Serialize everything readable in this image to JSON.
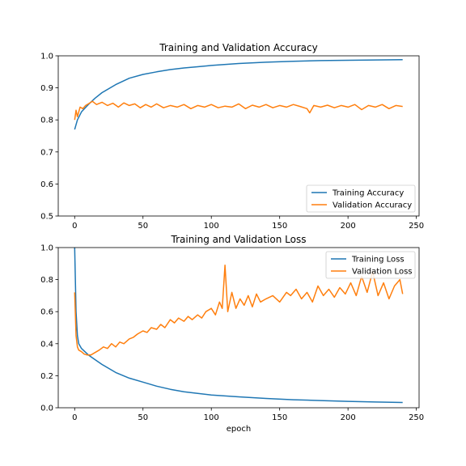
{
  "colors": {
    "training": "#1f77b4",
    "validation": "#ff7f0e"
  },
  "chart_data": [
    {
      "type": "line",
      "title": "Training and Validation Accuracy",
      "xlabel": "",
      "ylabel": "",
      "xlim": [
        -12,
        252
      ],
      "ylim": [
        0.5,
        1.0
      ],
      "xticks": [
        0,
        50,
        100,
        150,
        200,
        250
      ],
      "yticks": [
        0.5,
        0.6,
        0.7,
        0.8,
        0.9,
        1.0
      ],
      "ytick_labels": [
        "0.5",
        "0.6",
        "0.7",
        "0.8",
        "0.9",
        "1.0"
      ],
      "grid": false,
      "legend_position": "lower-right",
      "series": [
        {
          "name": "Training Accuracy",
          "color_key": "training",
          "x": [
            0,
            2,
            5,
            10,
            15,
            20,
            30,
            40,
            50,
            60,
            70,
            80,
            90,
            100,
            120,
            140,
            160,
            180,
            200,
            220,
            240
          ],
          "y": [
            0.77,
            0.8,
            0.825,
            0.848,
            0.868,
            0.885,
            0.91,
            0.93,
            0.942,
            0.95,
            0.957,
            0.962,
            0.966,
            0.97,
            0.976,
            0.98,
            0.983,
            0.985,
            0.986,
            0.987,
            0.988
          ]
        },
        {
          "name": "Validation Accuracy",
          "color_key": "validation",
          "x": [
            0,
            1,
            2,
            4,
            6,
            8,
            10,
            13,
            16,
            20,
            24,
            28,
            32,
            36,
            40,
            44,
            48,
            52,
            56,
            60,
            65,
            70,
            75,
            80,
            85,
            90,
            95,
            100,
            105,
            110,
            115,
            120,
            125,
            130,
            135,
            140,
            145,
            150,
            155,
            160,
            165,
            170,
            172,
            175,
            180,
            185,
            190,
            195,
            200,
            205,
            210,
            215,
            220,
            225,
            230,
            235,
            240
          ],
          "y": [
            0.8,
            0.83,
            0.81,
            0.84,
            0.835,
            0.845,
            0.85,
            0.858,
            0.848,
            0.855,
            0.845,
            0.852,
            0.84,
            0.853,
            0.845,
            0.85,
            0.838,
            0.848,
            0.84,
            0.85,
            0.838,
            0.845,
            0.84,
            0.848,
            0.835,
            0.845,
            0.84,
            0.848,
            0.838,
            0.843,
            0.84,
            0.85,
            0.835,
            0.846,
            0.84,
            0.848,
            0.838,
            0.845,
            0.84,
            0.848,
            0.842,
            0.835,
            0.822,
            0.845,
            0.84,
            0.846,
            0.838,
            0.845,
            0.84,
            0.848,
            0.832,
            0.845,
            0.84,
            0.848,
            0.835,
            0.845,
            0.842
          ]
        }
      ]
    },
    {
      "type": "line",
      "title": "Training and Validation Loss",
      "xlabel": "epoch",
      "ylabel": "",
      "xlim": [
        -12,
        252
      ],
      "ylim": [
        0.0,
        1.0
      ],
      "xticks": [
        0,
        50,
        100,
        150,
        200,
        250
      ],
      "yticks": [
        0.0,
        0.2,
        0.4,
        0.6,
        0.8,
        1.0
      ],
      "ytick_labels": [
        "0.0",
        "0.2",
        "0.4",
        "0.6",
        "0.8",
        "1.0"
      ],
      "grid": false,
      "legend_position": "top-right",
      "series": [
        {
          "name": "Training Loss",
          "color_key": "training",
          "x": [
            0,
            1,
            2,
            3,
            5,
            10,
            15,
            20,
            30,
            40,
            50,
            60,
            70,
            80,
            90,
            100,
            120,
            140,
            160,
            180,
            200,
            220,
            240
          ],
          "y": [
            1.0,
            0.6,
            0.45,
            0.4,
            0.37,
            0.33,
            0.3,
            0.27,
            0.22,
            0.185,
            0.16,
            0.135,
            0.115,
            0.1,
            0.09,
            0.08,
            0.068,
            0.058,
            0.05,
            0.045,
            0.04,
            0.036,
            0.033
          ]
        },
        {
          "name": "Validation Loss",
          "color_key": "validation",
          "x": [
            0,
            1,
            2,
            3,
            5,
            7,
            9,
            12,
            15,
            18,
            21,
            24,
            27,
            30,
            33,
            36,
            40,
            43,
            46,
            50,
            53,
            56,
            60,
            63,
            66,
            70,
            73,
            76,
            80,
            83,
            86,
            90,
            93,
            96,
            100,
            103,
            106,
            108,
            110,
            112,
            115,
            118,
            121,
            124,
            127,
            130,
            133,
            136,
            140,
            145,
            150,
            155,
            158,
            162,
            166,
            170,
            174,
            178,
            182,
            186,
            190,
            194,
            198,
            202,
            206,
            210,
            214,
            218,
            222,
            226,
            230,
            234,
            238,
            240
          ],
          "y": [
            0.72,
            0.45,
            0.38,
            0.36,
            0.35,
            0.335,
            0.33,
            0.33,
            0.345,
            0.36,
            0.38,
            0.37,
            0.4,
            0.38,
            0.41,
            0.4,
            0.43,
            0.44,
            0.46,
            0.48,
            0.47,
            0.5,
            0.49,
            0.52,
            0.5,
            0.55,
            0.53,
            0.56,
            0.54,
            0.57,
            0.55,
            0.58,
            0.56,
            0.6,
            0.62,
            0.58,
            0.66,
            0.62,
            0.89,
            0.6,
            0.72,
            0.62,
            0.68,
            0.64,
            0.7,
            0.63,
            0.71,
            0.66,
            0.68,
            0.7,
            0.66,
            0.72,
            0.7,
            0.74,
            0.68,
            0.72,
            0.66,
            0.76,
            0.7,
            0.74,
            0.69,
            0.75,
            0.71,
            0.78,
            0.7,
            0.82,
            0.72,
            0.85,
            0.7,
            0.78,
            0.68,
            0.76,
            0.8,
            0.71
          ]
        }
      ]
    }
  ]
}
